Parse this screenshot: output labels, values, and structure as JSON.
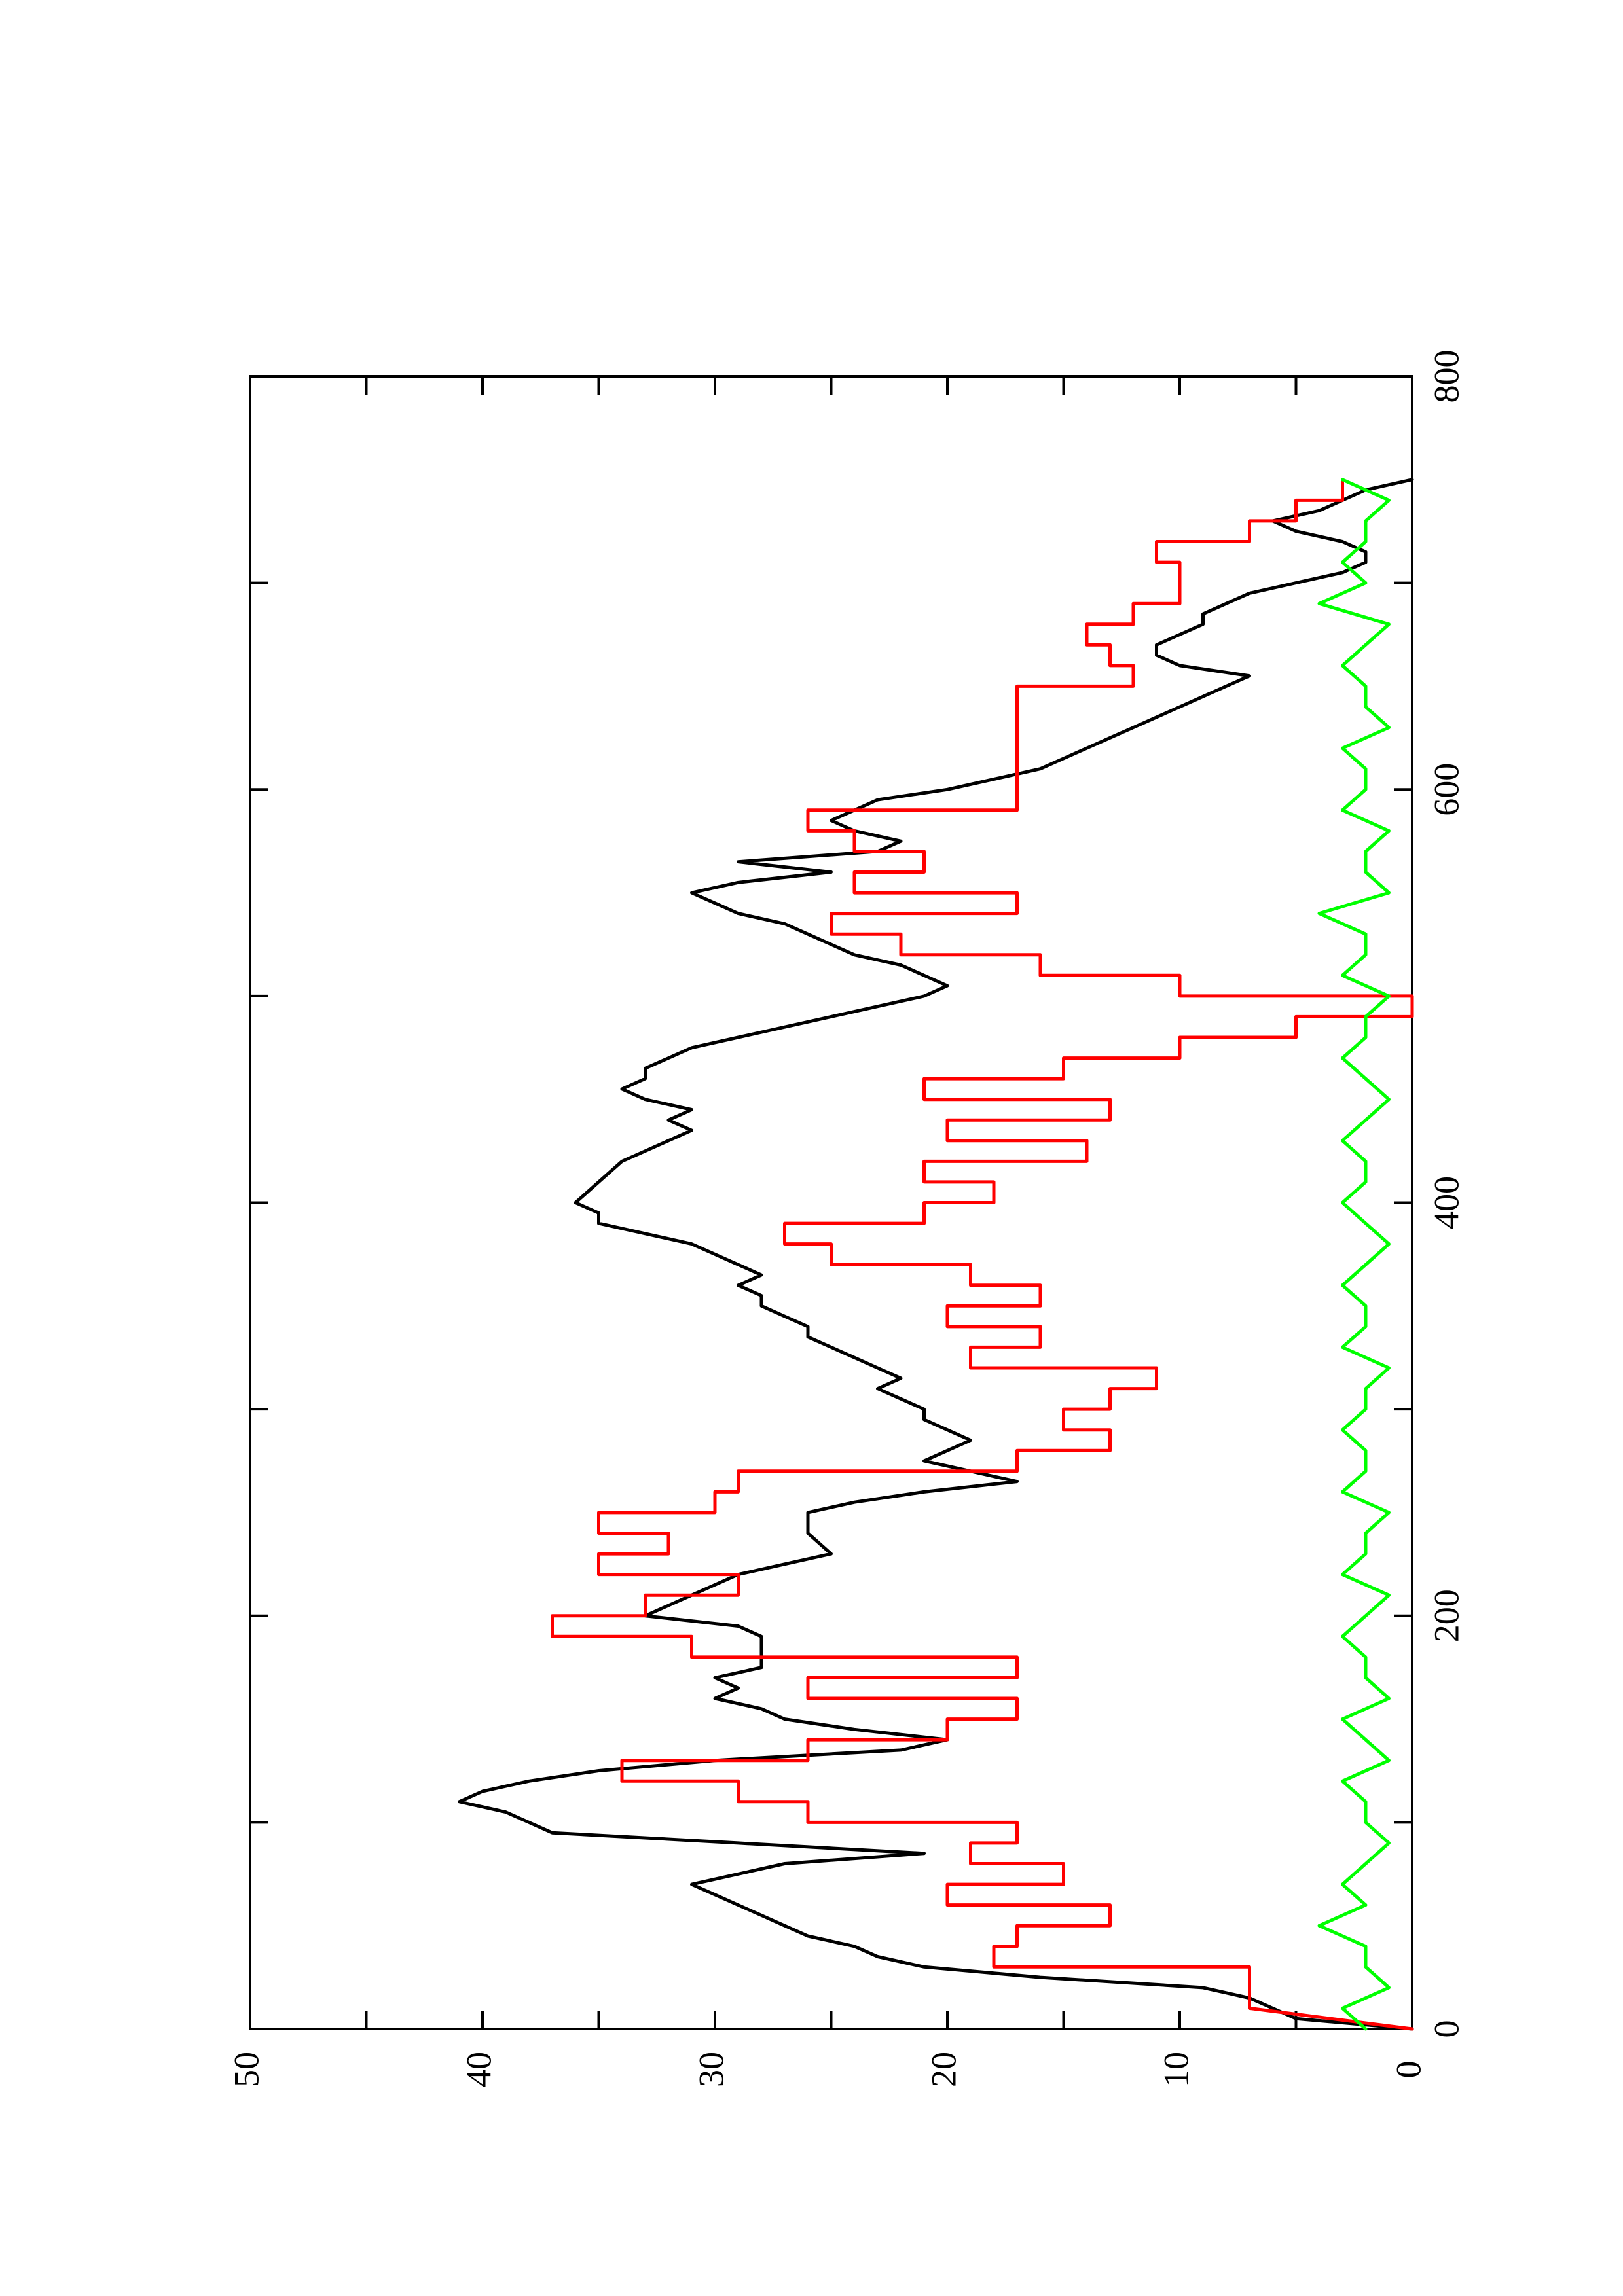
{
  "chart_data": {
    "type": "line",
    "orientation": "rotated-90-clockwise",
    "title": "",
    "xlabel": "",
    "ylabel": "",
    "xlim": [
      0,
      800
    ],
    "ylim": [
      0,
      50
    ],
    "x_ticks": [
      0,
      200,
      400,
      600,
      800
    ],
    "x_minor_ticks": [
      100,
      300,
      500,
      700
    ],
    "y_ticks": [
      0,
      10,
      20,
      30,
      40,
      50
    ],
    "y_minor_ticks": [
      5,
      15,
      25,
      35,
      45
    ],
    "x_tick_labels": [
      "0",
      "200",
      "400",
      "600",
      "800"
    ],
    "y_tick_labels": [
      "0",
      "10",
      "20",
      "30",
      "40",
      "50"
    ],
    "grid": false,
    "legend": "none",
    "series": [
      {
        "color": "#000000",
        "x": [
          0,
          5,
          10,
          15,
          20,
          25,
          30,
          35,
          40,
          45,
          50,
          55,
          60,
          65,
          70,
          75,
          80,
          85,
          90,
          95,
          100,
          105,
          110,
          115,
          120,
          125,
          130,
          135,
          140,
          145,
          150,
          155,
          160,
          165,
          170,
          175,
          180,
          185,
          190,
          195,
          200,
          205,
          210,
          215,
          220,
          225,
          230,
          240,
          250,
          255,
          260,
          265,
          270,
          275,
          280,
          285,
          290,
          295,
          300,
          305,
          310,
          315,
          320,
          325,
          330,
          335,
          340,
          345,
          350,
          355,
          360,
          365,
          370,
          375,
          380,
          385,
          390,
          395,
          400,
          410,
          420,
          425,
          430,
          435,
          440,
          445,
          450,
          455,
          460,
          465,
          470,
          475,
          480,
          485,
          490,
          495,
          500,
          505,
          510,
          515,
          520,
          525,
          530,
          535,
          540,
          545,
          550,
          555,
          560,
          565,
          570,
          575,
          580,
          585,
          590,
          595,
          600,
          605,
          610,
          615,
          620,
          625,
          630,
          635,
          640,
          645,
          650,
          655,
          660,
          665,
          670,
          675,
          680,
          685,
          690,
          695,
          700,
          705,
          710,
          715,
          720,
          725,
          730,
          735,
          740,
          745,
          750
        ],
        "y": [
          0,
          5,
          6,
          7,
          9,
          16,
          21,
          23,
          24,
          26,
          27,
          28,
          29,
          30,
          31,
          29,
          27,
          21,
          29,
          37,
          38,
          39,
          41,
          40,
          38,
          35,
          30,
          22,
          20,
          24,
          27,
          28,
          30,
          29,
          30,
          28,
          28,
          28,
          28,
          29,
          33,
          32,
          31,
          30,
          29,
          27,
          25,
          26,
          26,
          24,
          21,
          17,
          19,
          21,
          20,
          19,
          20,
          21,
          21,
          22,
          23,
          22,
          23,
          24,
          25,
          26,
          26,
          27,
          28,
          28,
          29,
          28,
          29,
          30,
          31,
          33,
          35,
          35,
          36,
          35,
          34,
          33,
          32,
          31,
          32,
          31,
          33,
          34,
          33,
          33,
          32,
          31,
          29,
          27,
          25,
          23,
          21,
          20,
          21,
          22,
          24,
          25,
          26,
          27,
          29,
          30,
          31,
          29,
          25,
          29,
          23,
          22,
          24,
          25,
          24,
          23,
          20,
          18,
          16,
          15,
          14,
          13,
          12,
          11,
          10,
          9,
          8,
          7,
          10,
          11,
          11,
          10,
          9,
          9,
          8,
          7,
          5,
          3,
          2,
          2,
          3,
          5,
          6,
          4,
          3,
          2,
          0
        ]
      },
      {
        "color": "#ff0000",
        "x": [
          0,
          10,
          10,
          30,
          30,
          40,
          40,
          50,
          50,
          60,
          60,
          70,
          70,
          80,
          80,
          90,
          90,
          100,
          100,
          110,
          110,
          120,
          120,
          130,
          130,
          140,
          140,
          150,
          150,
          160,
          160,
          170,
          170,
          180,
          180,
          190,
          190,
          200,
          200,
          210,
          210,
          220,
          220,
          230,
          230,
          240,
          240,
          250,
          250,
          260,
          260,
          270,
          270,
          280,
          280,
          290,
          290,
          300,
          300,
          310,
          310,
          320,
          320,
          330,
          330,
          340,
          340,
          350,
          350,
          360,
          360,
          370,
          370,
          380,
          380,
          390,
          390,
          400,
          400,
          410,
          410,
          420,
          420,
          430,
          430,
          440,
          440,
          450,
          450,
          460,
          460,
          470,
          470,
          480,
          480,
          490,
          490,
          500,
          500,
          510,
          510,
          520,
          520,
          530,
          530,
          540,
          540,
          550,
          550,
          560,
          560,
          570,
          570,
          580,
          580,
          590,
          590,
          600,
          600,
          610,
          610,
          620,
          620,
          630,
          630,
          640,
          640,
          650,
          650,
          660,
          660,
          670,
          670,
          680,
          680,
          690,
          690,
          700,
          700,
          710,
          710,
          720,
          720,
          730,
          730,
          740,
          740,
          750
        ],
        "y": [
          0,
          7,
          7,
          7,
          18,
          18,
          17,
          17,
          13,
          13,
          20,
          20,
          15,
          15,
          19,
          19,
          17,
          17,
          26,
          26,
          29,
          29,
          34,
          34,
          26,
          26,
          20,
          20,
          17,
          17,
          26,
          26,
          17,
          17,
          31,
          31,
          37,
          37,
          33,
          33,
          29,
          29,
          35,
          35,
          32,
          32,
          35,
          35,
          30,
          30,
          29,
          29,
          17,
          17,
          13,
          13,
          15,
          15,
          13,
          13,
          11,
          11,
          19,
          19,
          16,
          16,
          20,
          20,
          16,
          16,
          19,
          19,
          25,
          25,
          27,
          27,
          21,
          21,
          18,
          18,
          21,
          21,
          14,
          14,
          20,
          20,
          13,
          13,
          21,
          21,
          15,
          15,
          10,
          10,
          5,
          5,
          0,
          0,
          10,
          10,
          16,
          16,
          22,
          22,
          25,
          25,
          17,
          17,
          24,
          24,
          21,
          21,
          24,
          24,
          26,
          26,
          17,
          17,
          17,
          17,
          17,
          17,
          17,
          17,
          17,
          17,
          17,
          17,
          12,
          12,
          13,
          13,
          14,
          14,
          12,
          12,
          10,
          10,
          10,
          10,
          11,
          11,
          7,
          7,
          5,
          5,
          3,
          3
        ]
      },
      {
        "color": "#00ff00",
        "x": [
          0,
          10,
          20,
          30,
          40,
          50,
          60,
          70,
          80,
          90,
          100,
          110,
          120,
          130,
          140,
          150,
          160,
          170,
          180,
          190,
          200,
          210,
          220,
          230,
          240,
          250,
          260,
          270,
          280,
          290,
          300,
          310,
          320,
          330,
          340,
          350,
          360,
          370,
          380,
          390,
          400,
          410,
          420,
          430,
          440,
          450,
          460,
          470,
          480,
          490,
          500,
          510,
          520,
          530,
          540,
          550,
          560,
          570,
          580,
          590,
          600,
          610,
          620,
          630,
          640,
          650,
          660,
          670,
          680,
          690,
          700,
          710,
          720,
          730,
          740,
          750
        ],
        "y": [
          2,
          3,
          1,
          2,
          2,
          4,
          2,
          3,
          2,
          1,
          2,
          2,
          3,
          1,
          2,
          3,
          1,
          2,
          2,
          3,
          2,
          1,
          3,
          2,
          2,
          1,
          3,
          2,
          2,
          3,
          2,
          2,
          1,
          3,
          2,
          2,
          3,
          2,
          1,
          2,
          3,
          2,
          2,
          3,
          2,
          1,
          2,
          3,
          2,
          2,
          1,
          3,
          2,
          2,
          4,
          1,
          2,
          2,
          1,
          3,
          2,
          2,
          3,
          1,
          2,
          2,
          3,
          2,
          1,
          4,
          2,
          3,
          2,
          2,
          1,
          3
        ]
      }
    ]
  }
}
